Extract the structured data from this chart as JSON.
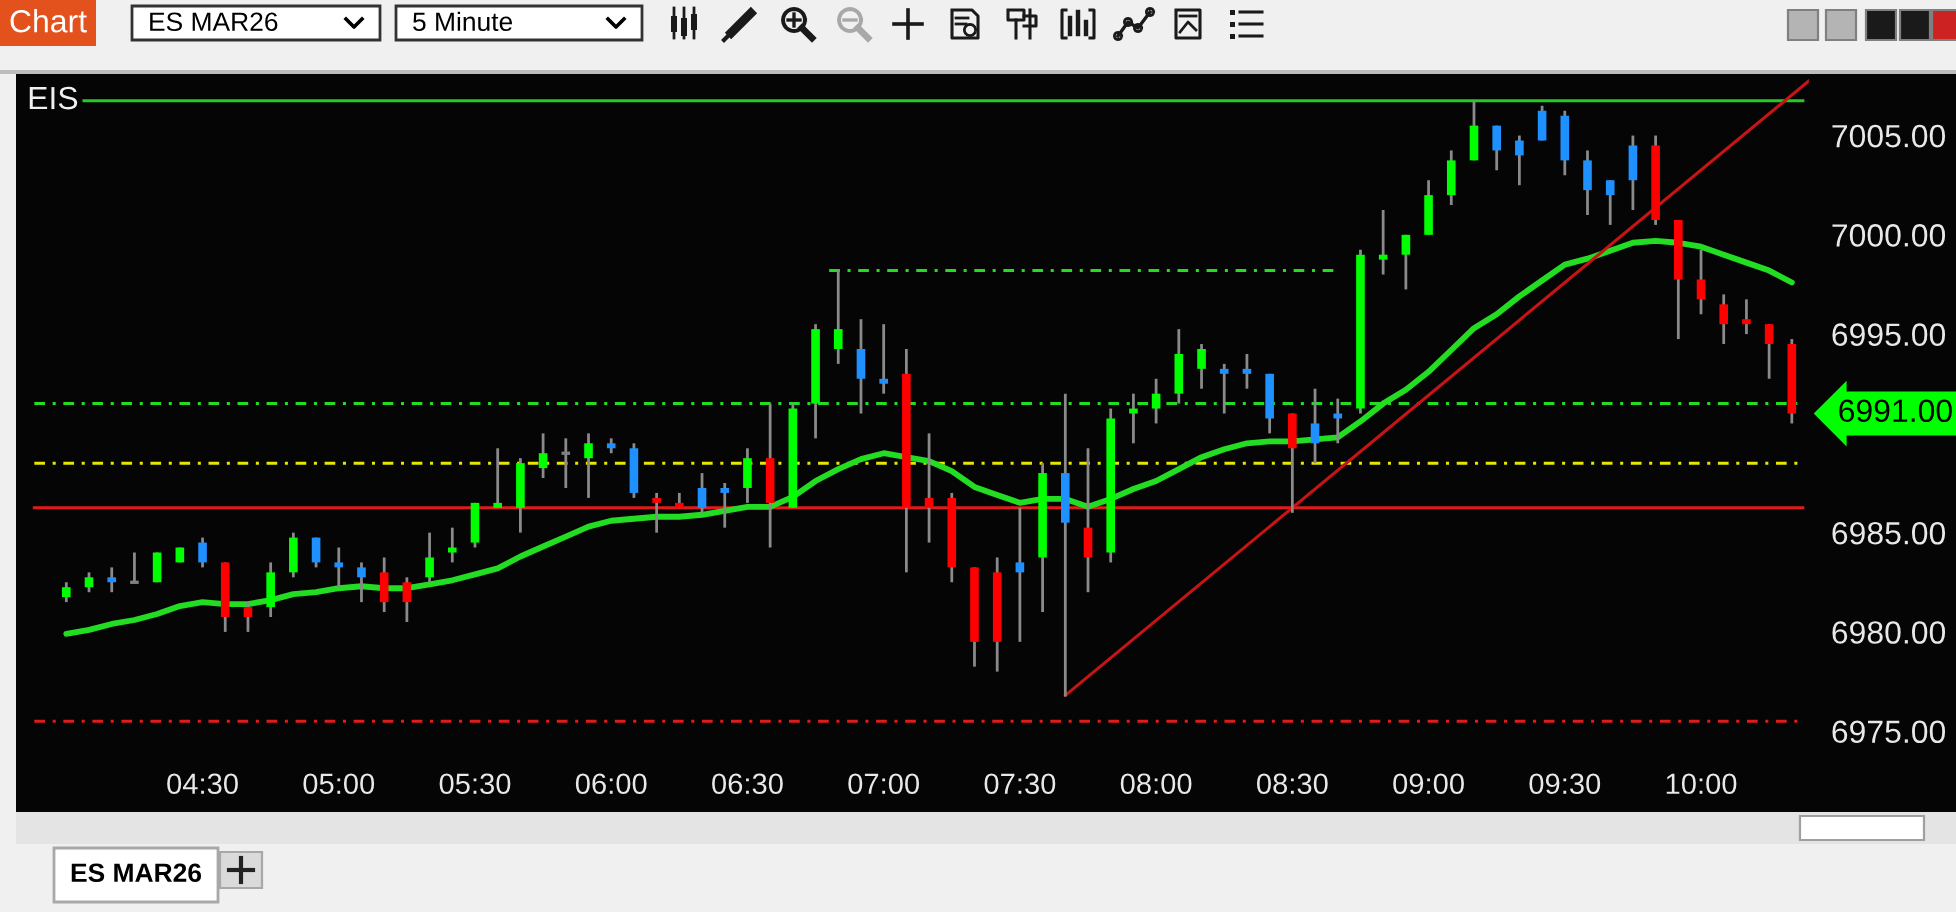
{
  "chart_data": {
    "type": "candlestick",
    "title": "ES MAR26",
    "subtitle": "5 Minute",
    "x": [
      4,
      4.0833,
      4.1667,
      4.25,
      4.3333,
      4.4167,
      4.5,
      4.5833,
      4.6667,
      4.75,
      4.8333,
      4.9167,
      5,
      5.0833,
      5.1667,
      5.25,
      5.3333,
      5.4167,
      5.5,
      5.5833,
      5.6667,
      5.75,
      5.8333,
      5.9167,
      6,
      6.0833,
      6.1667,
      6.25,
      6.3333,
      6.4167,
      6.5,
      6.5833,
      6.6667,
      6.75,
      6.8333,
      6.9167,
      7,
      7.0833,
      7.1667,
      7.25,
      7.3333,
      7.4167,
      7.5,
      7.5833,
      7.6667,
      7.75,
      7.8333,
      7.9167,
      8,
      8.0833,
      8.1667,
      8.25,
      8.3333,
      8.4167,
      8.5,
      8.5833,
      8.6667,
      8.75,
      8.8333,
      8.9167,
      9,
      9.0833,
      9.1667,
      9.25,
      9.3333,
      9.4167,
      9.5,
      9.5833,
      9.6667,
      9.75,
      9.8333,
      9.9167,
      10,
      10.0833,
      10.1667,
      10.25,
      10.3333
    ],
    "ohlc": [
      [
        6981.75,
        6982.5,
        6981.5,
        6982.25
      ],
      [
        6982.25,
        6983.0,
        6982.0,
        6982.75
      ],
      [
        6982.75,
        6983.25,
        6982.0,
        6982.5
      ],
      [
        6982.5,
        6984.0,
        6982.5,
        6982.5
      ],
      [
        6982.5,
        6984.0,
        6982.5,
        6984.0
      ],
      [
        6983.5,
        6984.25,
        6983.5,
        6984.25
      ],
      [
        6984.5,
        6984.75,
        6983.25,
        6983.5
      ],
      [
        6983.5,
        6983.5,
        6980.0,
        6980.75
      ],
      [
        6981.25,
        6981.5,
        6980.0,
        6980.75
      ],
      [
        6981.25,
        6983.5,
        6980.75,
        6983.0
      ],
      [
        6983.0,
        6985.0,
        6982.75,
        6984.75
      ],
      [
        6984.75,
        6984.75,
        6983.25,
        6983.5
      ],
      [
        6983.5,
        6984.25,
        6982.25,
        6983.25
      ],
      [
        6983.25,
        6983.5,
        6981.5,
        6982.75
      ],
      [
        6983.0,
        6983.75,
        6981.0,
        6981.5
      ],
      [
        6982.5,
        6982.75,
        6980.5,
        6981.5
      ],
      [
        6982.75,
        6985.0,
        6982.5,
        6983.75
      ],
      [
        6984.0,
        6985.25,
        6983.5,
        6984.25
      ],
      [
        6984.5,
        6986.5,
        6984.25,
        6986.5
      ],
      [
        6986.25,
        6989.25,
        6986.25,
        6986.5
      ],
      [
        6986.25,
        6988.75,
        6985.0,
        6988.5
      ],
      [
        6988.25,
        6990.0,
        6987.75,
        6989.0
      ],
      [
        6989.0,
        6989.75,
        6987.25,
        6989.0
      ],
      [
        6988.75,
        6990.0,
        6986.75,
        6989.5
      ],
      [
        6989.5,
        6989.75,
        6989.0,
        6989.25
      ],
      [
        6989.25,
        6989.5,
        6986.75,
        6987.0
      ],
      [
        6986.75,
        6987.0,
        6985.0,
        6986.5
      ],
      [
        6986.5,
        6987.0,
        6986.25,
        6986.25
      ],
      [
        6986.25,
        6988.0,
        6986.0,
        6987.25
      ],
      [
        6987.0,
        6987.5,
        6985.25,
        6987.25
      ],
      [
        6987.25,
        6989.25,
        6986.5,
        6988.75
      ],
      [
        6988.75,
        6991.5,
        6984.25,
        6986.5
      ],
      [
        6986.25,
        6991.5,
        6986.25,
        6991.25
      ],
      [
        6991.5,
        6995.5,
        6989.75,
        6995.25
      ],
      [
        6994.25,
        6998.25,
        6993.5,
        6995.25
      ],
      [
        6994.25,
        6995.75,
        6991.0,
        6992.75
      ],
      [
        6992.75,
        6995.5,
        6992.0,
        6992.5
      ],
      [
        6993.0,
        6994.25,
        6983.0,
        6986.25
      ],
      [
        6986.75,
        6990.0,
        6984.5,
        6986.25
      ],
      [
        6986.75,
        6987.0,
        6982.5,
        6983.25
      ],
      [
        6983.25,
        6983.25,
        6978.25,
        6979.5
      ],
      [
        6983.0,
        6983.75,
        6978.0,
        6979.5
      ],
      [
        6983.0,
        6986.25,
        6979.5,
        6983.5
      ],
      [
        6983.75,
        6988.5,
        6981.0,
        6988.0
      ],
      [
        6988.0,
        6992.0,
        6976.75,
        6985.5
      ],
      [
        6985.25,
        6989.25,
        6982.0,
        6983.75
      ],
      [
        6984.0,
        6991.25,
        6983.5,
        6990.75
      ],
      [
        6991.0,
        6992.0,
        6989.5,
        6991.25
      ],
      [
        6991.25,
        6992.75,
        6990.5,
        6992.0
      ],
      [
        6992.0,
        6995.25,
        6991.5,
        6994.0
      ],
      [
        6993.25,
        6994.5,
        6992.25,
        6994.25
      ],
      [
        6993.25,
        6993.5,
        6991.0,
        6993.0
      ],
      [
        6993.0,
        6994.0,
        6992.25,
        6993.25
      ],
      [
        6993.0,
        6993.0,
        6990.0,
        6990.75
      ],
      [
        6991.0,
        6991.0,
        6986.0,
        6989.25
      ],
      [
        6989.5,
        6992.25,
        6988.5,
        6990.5
      ],
      [
        6990.75,
        6991.75,
        6989.5,
        6991.0
      ],
      [
        6991.25,
        6999.25,
        6991.0,
        6999.0
      ],
      [
        6998.75,
        7001.25,
        6998.0,
        6999.0
      ],
      [
        6999.0,
        7000.0,
        6997.25,
        7000.0
      ],
      [
        7000.0,
        7002.75,
        7000.0,
        7002.0
      ],
      [
        7002.0,
        7004.25,
        7001.5,
        7003.75
      ],
      [
        7003.75,
        7006.75,
        7003.75,
        7005.5
      ],
      [
        7005.5,
        7005.5,
        7003.25,
        7004.25
      ],
      [
        7004.0,
        7005.0,
        7002.5,
        7004.75
      ],
      [
        7004.75,
        7006.5,
        7004.75,
        7006.25
      ],
      [
        7006.0,
        7006.25,
        7003.0,
        7003.75
      ],
      [
        7003.75,
        7004.25,
        7001.0,
        7002.25
      ],
      [
        7002.0,
        7002.75,
        7000.5,
        7002.75
      ],
      [
        7002.75,
        7005.0,
        7001.25,
        7004.5
      ],
      [
        7004.5,
        7005.0,
        7000.5,
        7000.75
      ],
      [
        7000.75,
        7000.75,
        6994.75,
        6997.75
      ],
      [
        6997.75,
        6999.25,
        6996.0,
        6996.75
      ],
      [
        6996.5,
        6997.0,
        6994.5,
        6995.5
      ],
      [
        6995.75,
        6996.75,
        6995.0,
        6995.5
      ],
      [
        6995.5,
        6995.5,
        6992.75,
        6994.5
      ],
      [
        6994.5,
        6994.75,
        6990.5,
        6991.0
      ]
    ],
    "colors": [
      "#00ff00",
      "#00ff00",
      "#1e90ff",
      "#808080",
      "#00ff00",
      "#00ff00",
      "#1e90ff",
      "#ff0000",
      "#ff0000",
      "#00ff00",
      "#00ff00",
      "#1e90ff",
      "#1e90ff",
      "#1e90ff",
      "#ff0000",
      "#ff0000",
      "#00ff00",
      "#00ff00",
      "#00ff00",
      "#00ff00",
      "#00ff00",
      "#00ff00",
      "#808080",
      "#00ff00",
      "#1e90ff",
      "#1e90ff",
      "#ff0000",
      "#ff0000",
      "#1e90ff",
      "#1e90ff",
      "#00ff00",
      "#ff0000",
      "#00ff00",
      "#00ff00",
      "#00ff00",
      "#1e90ff",
      "#1e90ff",
      "#ff0000",
      "#ff0000",
      "#ff0000",
      "#ff0000",
      "#ff0000",
      "#1e90ff",
      "#00ff00",
      "#1e90ff",
      "#ff0000",
      "#00ff00",
      "#00ff00",
      "#00ff00",
      "#00ff00",
      "#00ff00",
      "#1e90ff",
      "#1e90ff",
      "#1e90ff",
      "#ff0000",
      "#1e90ff",
      "#1e90ff",
      "#00ff00",
      "#00ff00",
      "#00ff00",
      "#00ff00",
      "#00ff00",
      "#00ff00",
      "#1e90ff",
      "#1e90ff",
      "#1e90ff",
      "#1e90ff",
      "#1e90ff",
      "#1e90ff",
      "#1e90ff",
      "#ff0000",
      "#ff0000",
      "#ff0000",
      "#ff0000",
      "#ff0000",
      "#ff0000",
      "#ff0000"
    ],
    "series": [
      {
        "type": "line",
        "color": "#22dd22",
        "values": [
          6979.9,
          6980.1,
          6980.4,
          6980.6,
          6980.9,
          6981.3,
          6981.5,
          6981.4,
          6981.4,
          6981.6,
          6981.9,
          6982.0,
          6982.2,
          6982.3,
          6982.2,
          6982.2,
          6982.4,
          6982.6,
          6982.9,
          6983.2,
          6983.8,
          6984.3,
          6984.8,
          6985.3,
          6985.6,
          6985.7,
          6985.8,
          6985.8,
          6985.9,
          6986.1,
          6986.3,
          6986.3,
          6986.8,
          6987.6,
          6988.2,
          6988.7,
          6989.0,
          6988.8,
          6988.6,
          6988.1,
          6987.3,
          6986.9,
          6986.5,
          6986.7,
          6986.7,
          6986.3,
          6986.7,
          6987.2,
          6987.6,
          6988.2,
          6988.8,
          6989.2,
          6989.5,
          6989.6,
          6989.6,
          6989.7,
          6989.8,
          6990.6,
          6991.5,
          6992.2,
          6993.1,
          6994.2,
          6995.3,
          6996.0,
          6996.9,
          6997.7,
          6998.5,
          6998.8,
          6999.2,
          6999.6,
          6999.7,
          6999.6,
          6999.4,
          6999.0,
          6998.6,
          6998.2,
          6997.6
        ]
      },
      {
        "type": "line",
        "x": [
          7.6667,
          10.4
        ],
        "values": [
          6976.8,
          7007.8
        ],
        "color": "#c81414"
      },
      {
        "type": "line",
        "x": [
          6.8,
          8.67
        ],
        "values": [
          6998.2,
          6998.2
        ],
        "color": "#22dd22",
        "line_style": "dashed"
      }
    ],
    "ref_lines": [
      {
        "axis": "y",
        "value": 7006.75,
        "label": "EIS",
        "color": "#22cc22",
        "line_style": "solid"
      },
      {
        "axis": "y",
        "value": 6991.5,
        "color": "#22dd22",
        "line_style": "dashed"
      },
      {
        "axis": "y",
        "value": 6988.5,
        "color": "#e6e600",
        "line_style": "dashed"
      },
      {
        "axis": "y",
        "value": 6986.25,
        "color": "#e01b1b",
        "line_style": "solid"
      },
      {
        "axis": "y",
        "value": 6975.5,
        "color": "#e01b1b",
        "line_style": "dashed"
      }
    ],
    "annotations": [
      "Chart",
      {
        "text": "6991.00",
        "x": 10.3333,
        "y": 6991
      }
    ],
    "xlim": [
      3.83,
      10.4
    ],
    "ylim": [
      6973.75,
      7008.0
    ],
    "xticks": [
      {
        "value": 4.5,
        "label": "04:30"
      },
      {
        "value": 5,
        "label": "05:00"
      },
      {
        "value": 5.5,
        "label": "05:30"
      },
      {
        "value": 6,
        "label": "06:00"
      },
      {
        "value": 6.5,
        "label": "06:30"
      },
      {
        "value": 7,
        "label": "07:00"
      },
      {
        "value": 7.5,
        "label": "07:30"
      },
      {
        "value": 8,
        "label": "08:00"
      },
      {
        "value": 8.5,
        "label": "08:30"
      },
      {
        "value": 9,
        "label": "09:00"
      },
      {
        "value": 9.5,
        "label": "09:30"
      },
      {
        "value": 10,
        "label": "10:00"
      }
    ],
    "yticks": [
      {
        "value": 6975,
        "label": "6975.00"
      },
      {
        "value": 6980,
        "label": "6980.00"
      },
      {
        "value": 6985,
        "label": "6985.00"
      },
      {
        "value": 6995,
        "label": "6995.00"
      },
      {
        "value": 7000,
        "label": "7000.00"
      },
      {
        "value": 7005,
        "label": "7005.00"
      }
    ]
  }
}
